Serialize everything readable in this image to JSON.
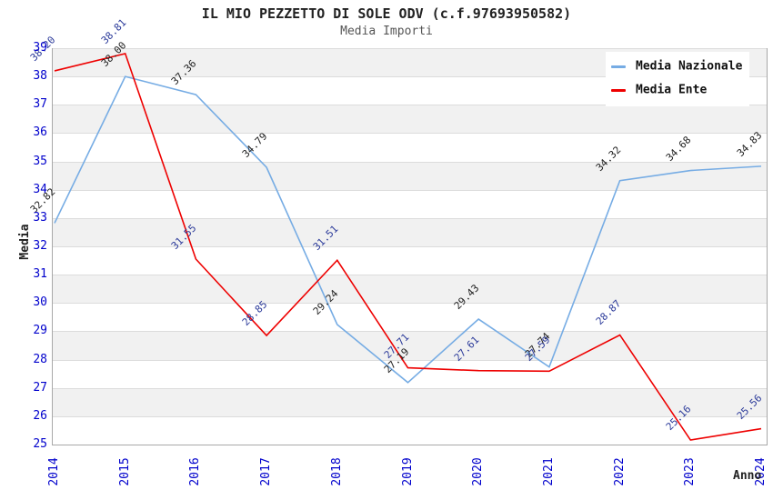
{
  "title": "IL MIO PEZZETTO DI SOLE ODV (c.f.97693950582)",
  "subtitle": "Media Importi",
  "axes": {
    "y_label": "Media",
    "x_label": "Anno",
    "y_ticks": [
      25,
      26,
      27,
      28,
      29,
      30,
      31,
      32,
      33,
      34,
      35,
      36,
      37,
      38,
      39
    ],
    "x_ticks": [
      "2014",
      "2015",
      "2016",
      "2017",
      "2018",
      "2019",
      "2020",
      "2021",
      "2022",
      "2023",
      "2024"
    ],
    "tick_color": "#0000cc"
  },
  "legend": {
    "position": "top-right",
    "items": [
      {
        "label": "Media Nazionale",
        "color": "#76ace4"
      },
      {
        "label": "Media Ente",
        "color": "#ee0000"
      }
    ]
  },
  "chart_data": {
    "type": "line",
    "title": "IL MIO PEZZETTO DI SOLE ODV (c.f.97693950582)",
    "subtitle": "Media Importi",
    "xlabel": "Anno",
    "ylabel": "Media",
    "x": [
      2014,
      2015,
      2016,
      2017,
      2018,
      2019,
      2020,
      2021,
      2022,
      2023,
      2024
    ],
    "ylim": [
      25,
      39
    ],
    "grid": "horizontal gridlines with alternating gray bands",
    "legend_position": "top-right",
    "series": [
      {
        "name": "Media Nazionale",
        "color": "#76ace4",
        "label_color": "#222222",
        "values": [
          32.82,
          38.0,
          37.36,
          34.79,
          29.24,
          27.19,
          29.43,
          27.74,
          34.32,
          34.68,
          34.83
        ]
      },
      {
        "name": "Media Ente",
        "color": "#ee0000",
        "label_color": "#2b3a9a",
        "values": [
          38.2,
          38.81,
          31.55,
          28.85,
          31.51,
          27.71,
          27.61,
          27.59,
          28.87,
          25.16,
          25.56
        ]
      }
    ]
  }
}
